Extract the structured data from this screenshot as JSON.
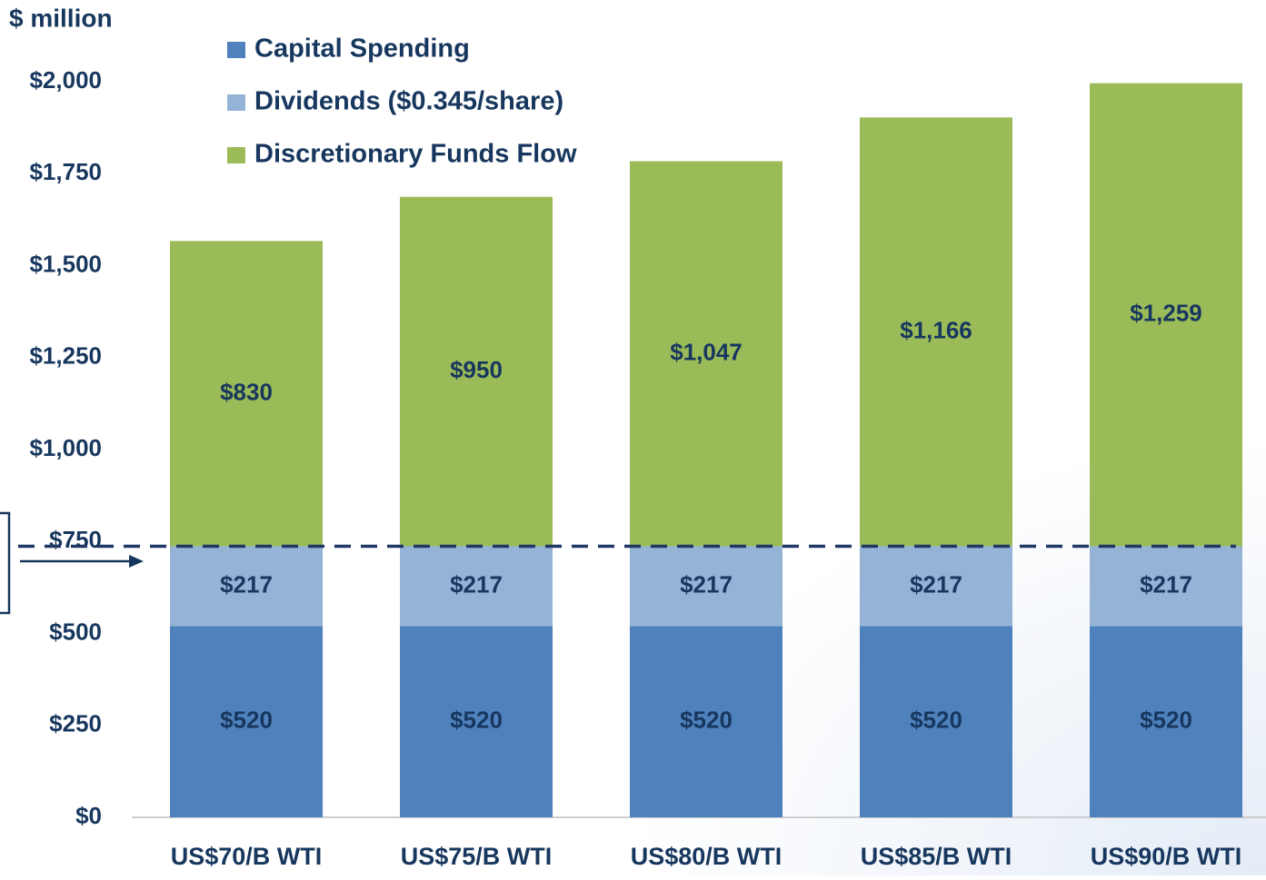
{
  "chart_data": {
    "type": "stacked_bar",
    "y_axis_label": "$ million",
    "categories": [
      "US$70/B WTI",
      "US$75/B WTI",
      "US$80/B WTI",
      "US$85/B WTI",
      "US$90/B WTI"
    ],
    "series": [
      {
        "name": "Capital Spending",
        "color": "#4f81bd",
        "values": [
          520,
          520,
          520,
          520,
          520
        ],
        "value_labels": [
          "$520",
          "$520",
          "$520",
          "$520",
          "$520"
        ]
      },
      {
        "name": "Dividends ($0.345/share)",
        "color": "#95b3d7",
        "values": [
          217,
          217,
          217,
          217,
          217
        ],
        "value_labels": [
          "$217",
          "$217",
          "$217",
          "$217",
          "$217"
        ]
      },
      {
        "name": "Discretionary Funds Flow",
        "color": "#9bbb59",
        "values": [
          830,
          950,
          1047,
          1166,
          1259
        ],
        "value_labels": [
          "$830",
          "$950",
          "$1,047",
          "$1,166",
          "$1,259"
        ]
      }
    ],
    "ylim": [
      0,
      2000
    ],
    "yticks": [
      {
        "value": 0,
        "label": "$0"
      },
      {
        "value": 250,
        "label": "$250"
      },
      {
        "value": 500,
        "label": "$500"
      },
      {
        "value": 750,
        "label": "$750"
      },
      {
        "value": 1000,
        "label": "$1,000"
      },
      {
        "value": 1250,
        "label": "$1,250"
      },
      {
        "value": 1500,
        "label": "$1,500"
      },
      {
        "value": 1750,
        "label": "$1,750"
      },
      {
        "value": 2000,
        "label": "$2,000"
      }
    ]
  }
}
